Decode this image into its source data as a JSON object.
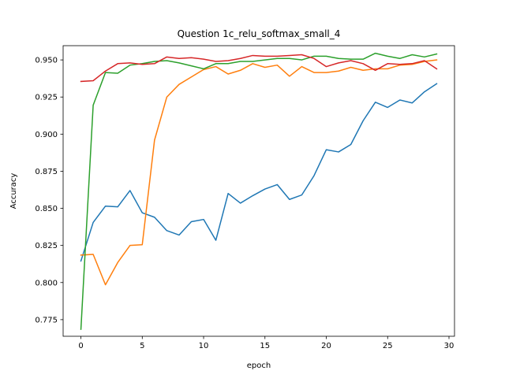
{
  "chart_data": {
    "type": "line",
    "title": "Question 1c_relu_softmax_small_4",
    "xlabel": "epoch",
    "ylabel": "Accuracy",
    "xlim": [
      -1.45,
      30.45
    ],
    "ylim": [
      0.7638,
      0.9596
    ],
    "xticks": [
      0,
      5,
      10,
      15,
      20,
      25,
      30
    ],
    "xtick_labels": [
      "0",
      "5",
      "10",
      "15",
      "20",
      "25",
      "30"
    ],
    "yticks": [
      0.775,
      0.8,
      0.825,
      0.85,
      0.875,
      0.9,
      0.925,
      0.95
    ],
    "ytick_labels": [
      "0.775",
      "0.800",
      "0.825",
      "0.850",
      "0.875",
      "0.900",
      "0.925",
      "0.950"
    ],
    "grid": false,
    "x": [
      0,
      1,
      2,
      3,
      4,
      5,
      6,
      7,
      8,
      9,
      10,
      11,
      12,
      13,
      14,
      15,
      16,
      17,
      18,
      19,
      20,
      21,
      22,
      23,
      24,
      25,
      26,
      27,
      28,
      29
    ],
    "series": [
      {
        "color": "#1f77b4",
        "values": [
          0.8145,
          0.8405,
          0.8515,
          0.851,
          0.862,
          0.847,
          0.844,
          0.835,
          0.832,
          0.841,
          0.8425,
          0.8285,
          0.86,
          0.8535,
          0.8585,
          0.863,
          0.866,
          0.856,
          0.859,
          0.872,
          0.8895,
          0.888,
          0.893,
          0.909,
          0.9215,
          0.918,
          0.923,
          0.921,
          0.9285,
          0.934
        ]
      },
      {
        "color": "#ff7f0e",
        "values": [
          0.8185,
          0.819,
          0.7985,
          0.8135,
          0.825,
          0.8255,
          0.896,
          0.925,
          0.9335,
          0.9385,
          0.9435,
          0.9455,
          0.9405,
          0.943,
          0.9475,
          0.945,
          0.9465,
          0.939,
          0.9455,
          0.9415,
          0.9415,
          0.9425,
          0.945,
          0.943,
          0.944,
          0.944,
          0.9465,
          0.947,
          0.949,
          0.95
        ]
      },
      {
        "color": "#2ca02c",
        "values": [
          0.7685,
          0.9195,
          0.9415,
          0.941,
          0.9465,
          0.9475,
          0.949,
          0.9495,
          0.948,
          0.946,
          0.944,
          0.9475,
          0.9475,
          0.949,
          0.949,
          0.95,
          0.951,
          0.951,
          0.95,
          0.9525,
          0.9525,
          0.951,
          0.9505,
          0.9505,
          0.9545,
          0.9525,
          0.951,
          0.9535,
          0.952,
          0.954
        ]
      },
      {
        "color": "#d62728",
        "values": [
          0.9355,
          0.936,
          0.9425,
          0.9475,
          0.948,
          0.947,
          0.9475,
          0.952,
          0.951,
          0.9515,
          0.9505,
          0.949,
          0.9495,
          0.951,
          0.953,
          0.9525,
          0.9525,
          0.953,
          0.9535,
          0.951,
          0.9455,
          0.948,
          0.9495,
          0.9475,
          0.943,
          0.9475,
          0.947,
          0.9475,
          0.9495,
          0.944
        ]
      }
    ]
  }
}
